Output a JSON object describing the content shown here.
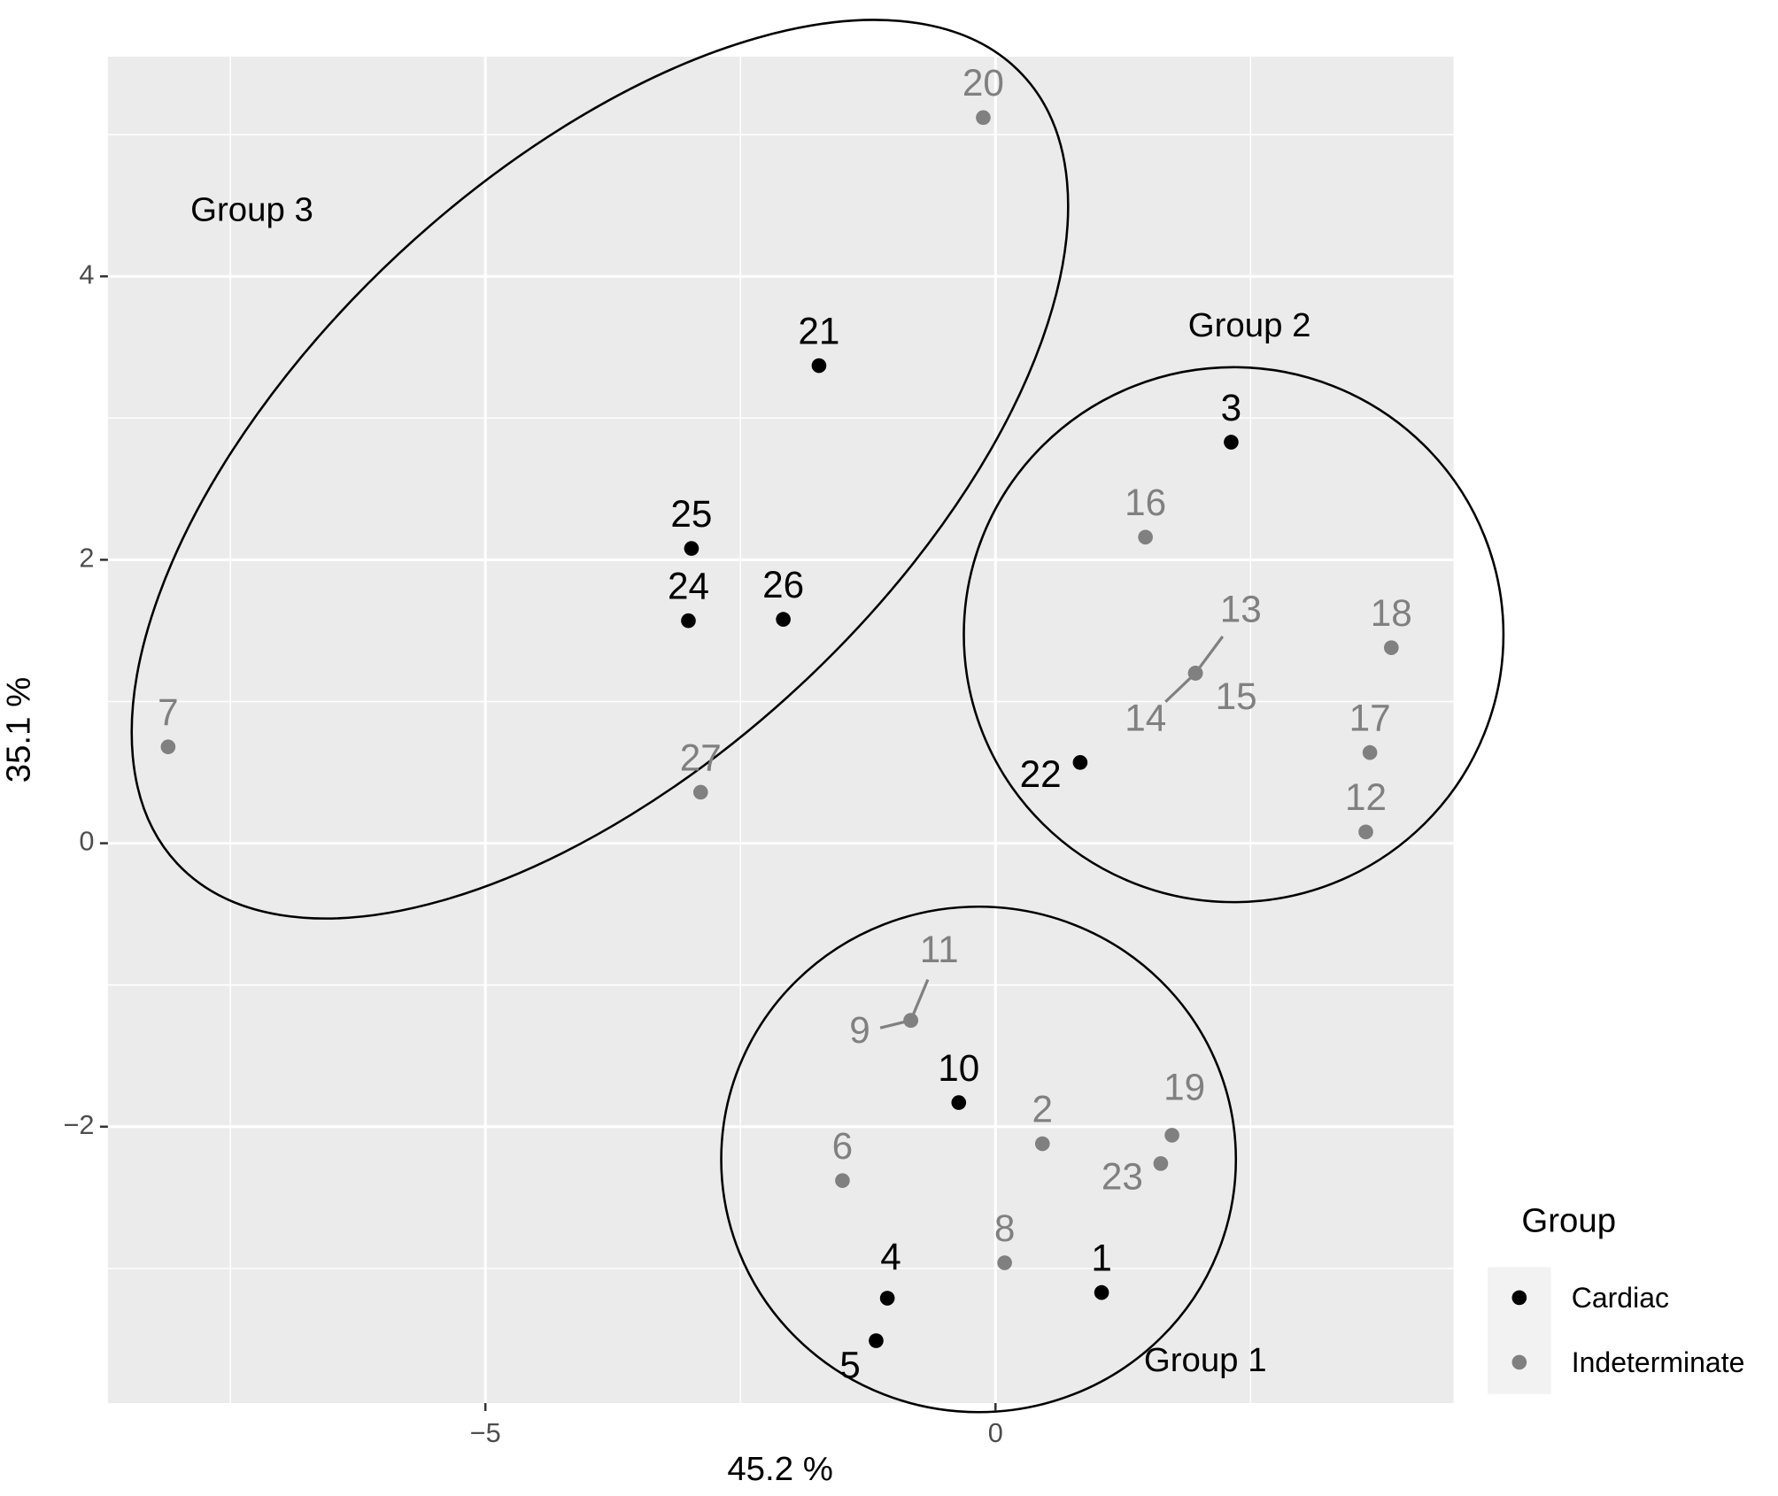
{
  "chart_data": {
    "type": "scatter",
    "x_label": "45.2 %",
    "y_label": "35.1 %",
    "xlim": [
      -8.7,
      4.49
    ],
    "ylim": [
      -3.95,
      5.55
    ],
    "xticks": [
      {
        "value": -5,
        "label": "−5"
      },
      0
    ],
    "yticks": [
      {
        "value": -2,
        "label": "−2"
      },
      0,
      2,
      4
    ],
    "grid": true,
    "legend_title": "Group",
    "legend_position": "right",
    "annotations": [
      "Group 3",
      "Group 2",
      "Group 1"
    ],
    "series": [
      {
        "name": "Cardiac",
        "color": "#000000",
        "labels": [
          "21",
          "3",
          "25",
          "24",
          "26",
          "22",
          "10",
          "4",
          "5",
          "1"
        ],
        "x": [
          -1.73,
          2.31,
          -2.98,
          -3.01,
          -2.08,
          0.83,
          -0.36,
          -1.06,
          -1.17,
          1.04
        ],
        "y": [
          3.37,
          2.83,
          2.08,
          1.57,
          1.58,
          0.57,
          -1.83,
          -3.21,
          -3.51,
          -3.17
        ]
      },
      {
        "name": "Indeterminate",
        "color": "#808080",
        "labels": [
          "20",
          "16",
          "13",
          "14",
          "15",
          "18",
          "17",
          "12",
          "7",
          "27",
          "11",
          "9",
          "2",
          "19",
          "23",
          "6",
          "8"
        ],
        "x": [
          -0.12,
          1.47,
          1.96,
          1.96,
          1.96,
          3.88,
          3.67,
          3.63,
          -8.11,
          -2.89,
          -0.83,
          -0.83,
          0.46,
          1.73,
          1.62,
          -1.5,
          0.09
        ],
        "y": [
          5.12,
          2.16,
          1.2,
          1.2,
          1.2,
          1.38,
          0.64,
          0.08,
          0.68,
          0.36,
          -1.25,
          -1.25,
          -2.12,
          -2.06,
          -2.26,
          -2.38,
          -2.96
        ]
      }
    ]
  }
}
